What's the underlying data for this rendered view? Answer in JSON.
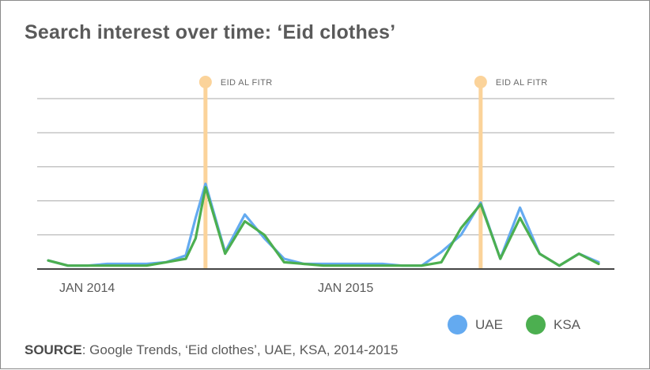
{
  "chart_data": {
    "type": "line",
    "title": "Search interest over time: ‘Eid clothes’",
    "x_ticks": [
      "JAN 2014",
      "JAN 2015"
    ],
    "grid": true,
    "legend_position": "bottom-right",
    "series": [
      {
        "name": "UAE",
        "color": "#64aaf0",
        "points": [
          [
            0,
            5
          ],
          [
            1,
            2
          ],
          [
            2,
            2
          ],
          [
            3,
            3
          ],
          [
            4,
            3
          ],
          [
            5,
            3
          ],
          [
            6,
            4
          ],
          [
            7,
            8
          ],
          [
            7.5,
            30
          ],
          [
            8,
            50
          ],
          [
            9,
            10
          ],
          [
            10,
            32
          ],
          [
            11,
            18
          ],
          [
            12,
            6
          ],
          [
            13,
            3
          ],
          [
            14,
            3
          ],
          [
            15,
            3
          ],
          [
            16,
            3
          ],
          [
            17,
            3
          ],
          [
            18,
            2
          ],
          [
            19,
            2
          ],
          [
            20,
            10
          ],
          [
            21,
            20
          ],
          [
            22,
            39
          ],
          [
            23,
            6
          ],
          [
            24,
            36
          ],
          [
            25,
            9
          ],
          [
            26,
            2
          ],
          [
            27,
            9
          ],
          [
            28,
            4
          ]
        ]
      },
      {
        "name": "KSA",
        "color": "#4caf50",
        "points": [
          [
            0,
            5
          ],
          [
            1,
            2
          ],
          [
            2,
            2
          ],
          [
            3,
            2
          ],
          [
            4,
            2
          ],
          [
            5,
            2
          ],
          [
            6,
            4
          ],
          [
            7,
            6
          ],
          [
            7.5,
            18
          ],
          [
            8,
            48
          ],
          [
            9,
            9
          ],
          [
            10,
            28
          ],
          [
            11,
            20
          ],
          [
            12,
            4
          ],
          [
            13,
            3
          ],
          [
            14,
            2
          ],
          [
            15,
            2
          ],
          [
            16,
            2
          ],
          [
            17,
            2
          ],
          [
            18,
            2
          ],
          [
            19,
            2
          ],
          [
            20,
            4
          ],
          [
            21,
            24
          ],
          [
            22,
            38
          ],
          [
            23,
            6
          ],
          [
            24,
            30
          ],
          [
            25,
            9
          ],
          [
            26,
            2
          ],
          [
            27,
            9
          ],
          [
            28,
            3
          ]
        ]
      }
    ],
    "events": [
      {
        "label": "EID AL FITR",
        "x": 8
      },
      {
        "label": "EID AL FITR",
        "x": 22
      }
    ],
    "ylim": [
      0,
      100
    ]
  },
  "footer": {
    "source_label": "SOURCE",
    "source_text": ": Google Trends, ‘Eid clothes’, UAE, KSA, 2014-2015"
  },
  "colors": {
    "event_marker": "#fbd39a",
    "axis": "#444444",
    "grid": "#aaaaaa"
  }
}
